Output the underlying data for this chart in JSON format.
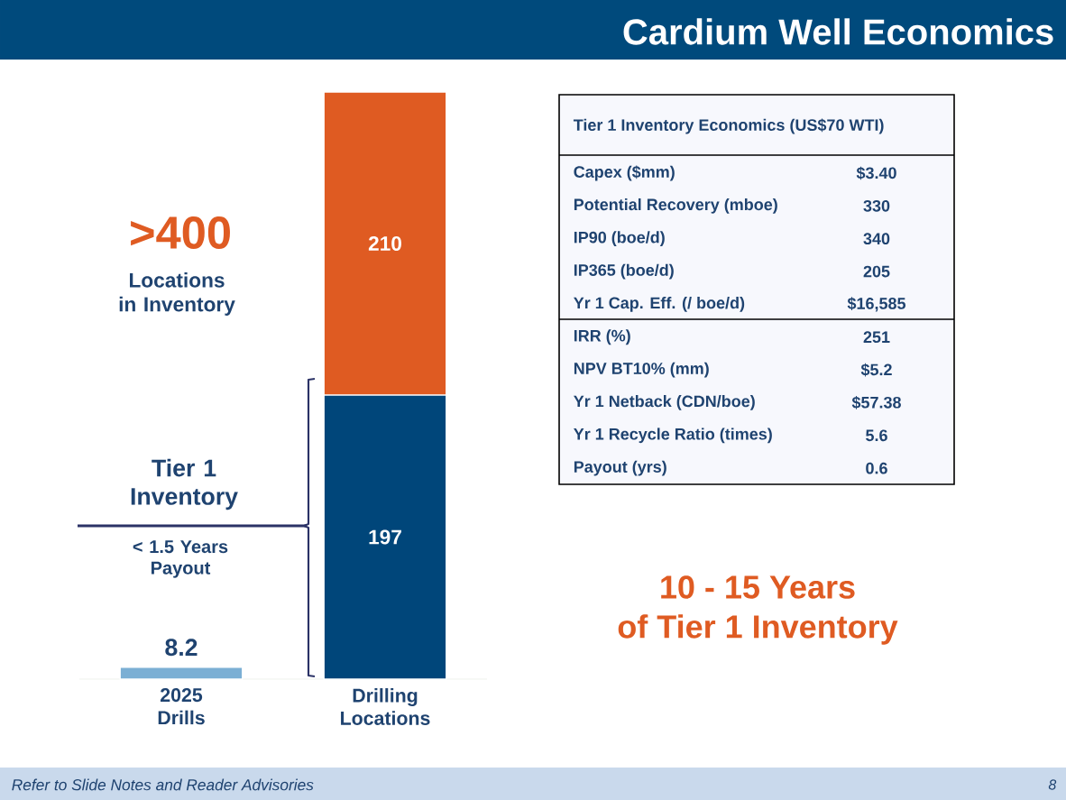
{
  "chart_data": {
    "type": "bar",
    "title": "Cardium Well Economics",
    "categories": [
      "2025 Drills",
      "Drilling Locations"
    ],
    "stacked": true,
    "data_labels": true,
    "ylim": [
      0,
      407
    ],
    "tick_labels": "x",
    "series": [
      {
        "values": [
          8.2,
          197
        ],
        "colors": [
          "#7bafd4",
          "#00467a"
        ]
      },
      {
        "values": [
          null,
          210
        ],
        "color": "#df5b22"
      }
    ],
    "annotations": [
      ">400",
      "Locations in Inventory",
      "Tier 1 Inventory",
      "< 1.5 Years Payout",
      "10 - 15 Years",
      "of Tier 1 Inventory",
      "Tier 1 Inventory Economics (US$70 WTI)",
      "Capex ($mm)",
      "$3.40",
      "Potential Recovery (mboe)",
      "330",
      "IP90 (boe/d)",
      "340",
      "IP365 (boe/d)",
      "205",
      "Yr 1 Cap. Eff. (/ boe/d)",
      "$16,585",
      "IRR (%)",
      "251",
      "NPV BT10% (mm)",
      "$5.2",
      "Yr 1 Netback (CDN/boe)",
      "$57.38",
      "Yr 1 Recycle Ratio (times)",
      "5.6",
      "Payout (yrs)",
      "0.6",
      "Refer to Slide Notes and Reader Advisories",
      "8"
    ]
  }
}
